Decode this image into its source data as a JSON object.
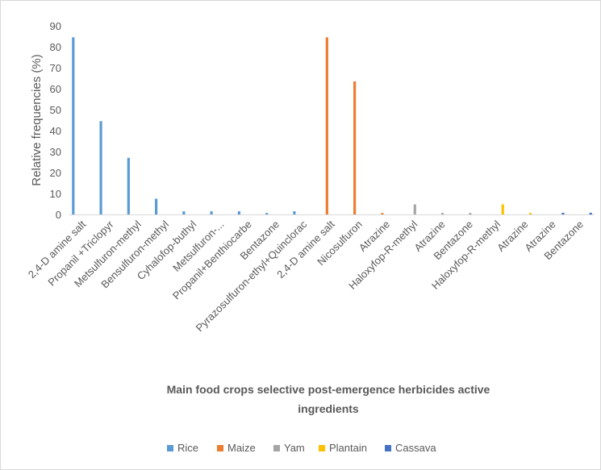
{
  "chart_data": {
    "type": "bar",
    "title": "",
    "ylabel": "Relative frequencies (%)",
    "xlabel_lines": [
      "Main food crops selective post-emergence herbicides active",
      "ingredients"
    ],
    "ylim": [
      0,
      90
    ],
    "yticks": [
      0,
      10,
      20,
      30,
      40,
      50,
      60,
      70,
      80,
      90
    ],
    "grid": false,
    "legend_position": "bottom",
    "categories": [
      "2,4-D amine salt",
      "Propanil +Triclopyr",
      "Metsulfuron-methyl",
      "Bensulfuron-methyl",
      "Cyhalofop-buthyl",
      "Metsulfuron-...",
      "Propanil+Benthiocarbe",
      "Bentazone",
      "Pyrazosulfuron-ethyl+Quinclorac",
      "2,4-D amine salt",
      "Nicosulfuron",
      "Atrazine",
      "Haloxyfop-R-methyl",
      "Atrazine",
      "Bentazone",
      "Haloxyfop-R-methyl",
      "Atrazine",
      "Atrazine",
      "Bentazone"
    ],
    "series": [
      {
        "name": "Rice",
        "color": "#5B9BD5",
        "values": [
          84.5,
          44.5,
          27,
          7.5,
          1.5,
          1.5,
          1.5,
          0.7,
          1.5,
          0,
          0,
          0,
          0,
          0,
          0,
          0,
          0,
          0,
          0
        ]
      },
      {
        "name": "Maize",
        "color": "#ED7D31",
        "values": [
          0,
          0,
          0,
          0,
          0,
          0,
          0,
          0,
          0,
          84.5,
          63.5,
          0.7,
          0,
          0,
          0,
          0,
          0,
          0,
          0
        ]
      },
      {
        "name": "Yam",
        "color": "#A5A5A5",
        "values": [
          0,
          0,
          0,
          0,
          0,
          0,
          0,
          0,
          0,
          0,
          0,
          0,
          4.8,
          0.7,
          0.7,
          0,
          0,
          0,
          0
        ]
      },
      {
        "name": "Plantain",
        "color": "#FFC000",
        "values": [
          0,
          0,
          0,
          0,
          0,
          0,
          0,
          0,
          0,
          0,
          0,
          0,
          0,
          0,
          0,
          4.8,
          0.7,
          0,
          0
        ]
      },
      {
        "name": "Cassava",
        "color": "#4472C4",
        "values": [
          0,
          0,
          0,
          0,
          0,
          0,
          0,
          0,
          0,
          0,
          0,
          0,
          0,
          0,
          0,
          0,
          0,
          0.8,
          0.8
        ]
      }
    ]
  }
}
